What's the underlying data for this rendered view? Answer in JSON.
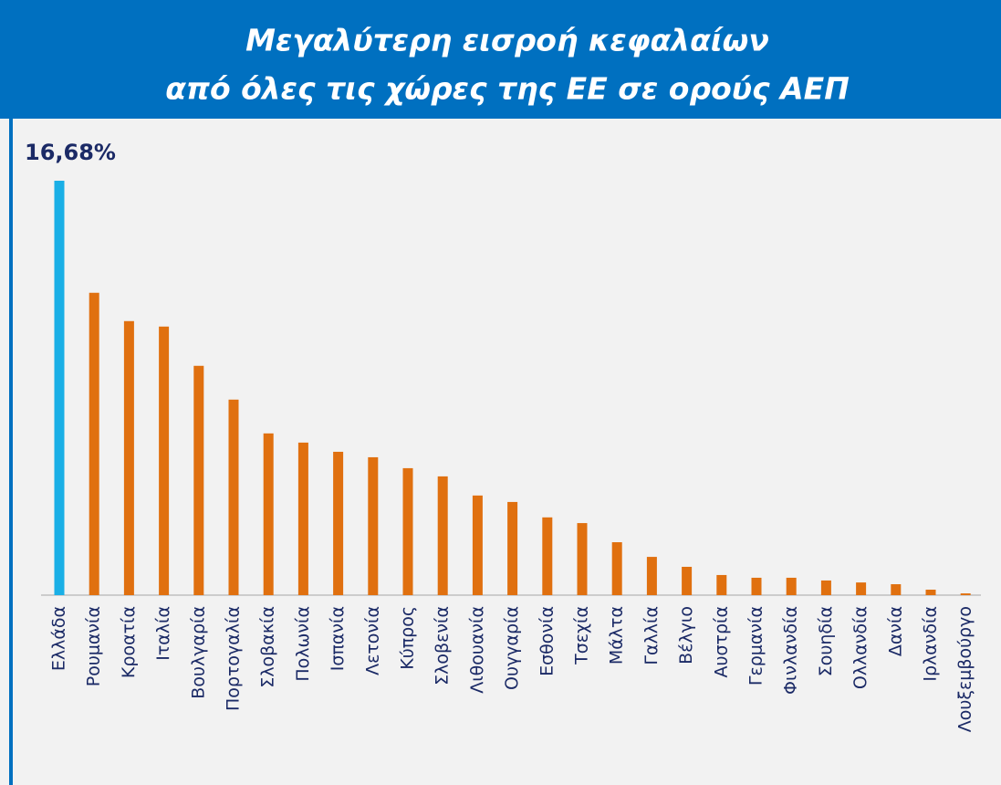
{
  "chart_data": {
    "type": "bar",
    "title": [
      "Μεγαλύτερη εισροή κεφαλαίων",
      "από όλες τις χώρες της ΕΕ σε ορούς ΑΕΠ"
    ],
    "categories": [
      "Ελλάδα",
      "Ρουμανία",
      "Κροατία",
      "Ιταλία",
      "Βουλγαρία",
      "Πορτογαλία",
      "Σλοβακία",
      "Πολωνία",
      "Ισπανία",
      "Λετονία",
      "Κύπρος",
      "Σλοβενία",
      "Λιθουανία",
      "Ουγγαρία",
      "Εσθονία",
      "Τσεχία",
      "Μάλτα",
      "Γαλλία",
      "Βέλγιο",
      "Αυστρία",
      "Γερμανία",
      "Φινλανδία",
      "Σουηδία",
      "Ολλανδία",
      "Δανία",
      "Ιρλανδία",
      "Λουξεμβούργο"
    ],
    "values": [
      16.68,
      12.17,
      11.03,
      10.81,
      9.23,
      7.87,
      6.51,
      6.14,
      5.77,
      5.55,
      5.11,
      4.78,
      4.01,
      3.75,
      3.13,
      2.9,
      2.13,
      1.54,
      1.14,
      0.81,
      0.7,
      0.7,
      0.59,
      0.51,
      0.44,
      0.22,
      0.07
    ],
    "value_labels": [
      "16,68%",
      null,
      null,
      null,
      null,
      null,
      null,
      null,
      null,
      null,
      null,
      null,
      null,
      null,
      null,
      null,
      null,
      null,
      null,
      null,
      null,
      null,
      null,
      null,
      null,
      null,
      null
    ],
    "colors": [
      "#1aafe6",
      "#e0700f",
      "#e0700f",
      "#e0700f",
      "#e0700f",
      "#e0700f",
      "#e0700f",
      "#e0700f",
      "#e0700f",
      "#e0700f",
      "#e0700f",
      "#e0700f",
      "#e0700f",
      "#e0700f",
      "#e0700f",
      "#e0700f",
      "#e0700f",
      "#e0700f",
      "#e0700f",
      "#e0700f",
      "#e0700f",
      "#e0700f",
      "#e0700f",
      "#e0700f",
      "#e0700f",
      "#e0700f",
      "#e0700f"
    ]
  }
}
